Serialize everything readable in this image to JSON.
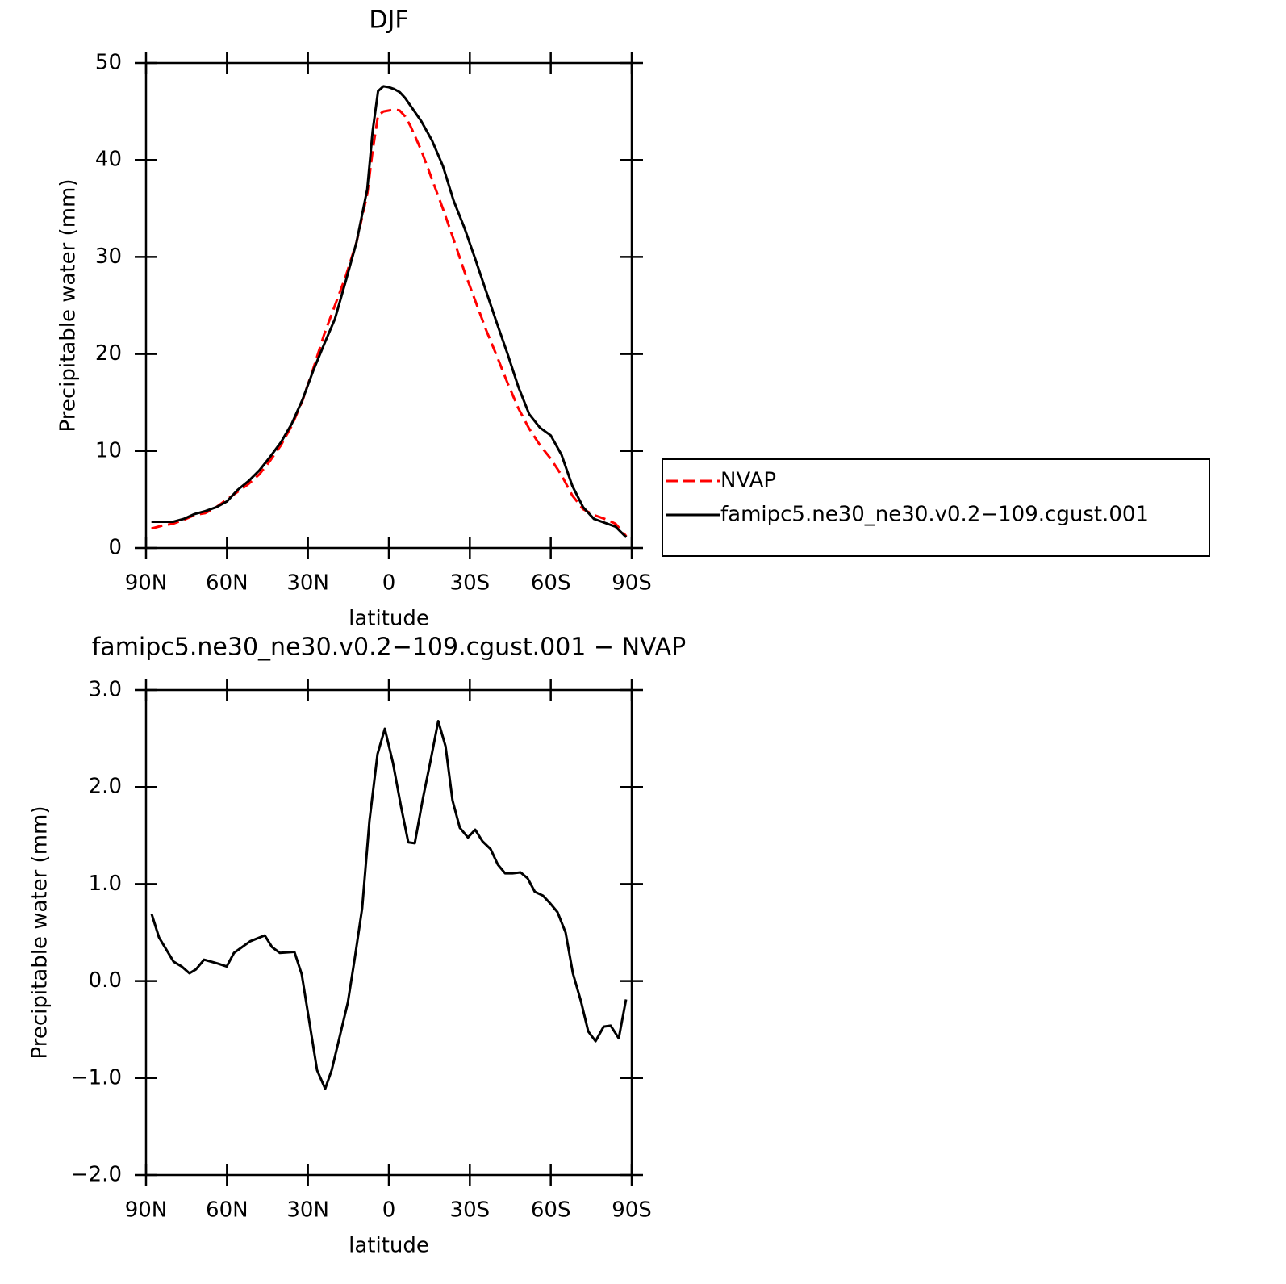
{
  "chart_data": [
    {
      "type": "line",
      "title": "DJF",
      "xlabel": "latitude",
      "ylabel": "Precipitable water (mm)",
      "x": [
        88,
        84,
        80,
        76,
        72,
        68,
        64,
        60,
        56,
        52,
        48,
        44,
        40,
        36,
        32,
        28,
        24,
        20,
        16,
        12,
        8,
        6,
        4,
        2,
        0,
        -2,
        -4,
        -6,
        -8,
        -12,
        -16,
        -20,
        -24,
        -28,
        -32,
        -36,
        -40,
        -44,
        -48,
        -52,
        -56,
        -60,
        -64,
        -68,
        -72,
        -76,
        -80,
        -84,
        -88
      ],
      "series": [
        {
          "name": "NVAP",
          "color": "#ff0000",
          "dashed": true,
          "values": [
            2.0,
            2.3,
            2.5,
            2.9,
            3.4,
            3.6,
            4.2,
            5.0,
            5.8,
            6.6,
            7.6,
            9.0,
            10.6,
            12.6,
            15.2,
            18.5,
            22.0,
            25.0,
            28.0,
            31.5,
            36.5,
            41,
            44.6,
            45.0,
            45.1,
            45.2,
            45.1,
            44.5,
            43.5,
            41.0,
            38.0,
            35.0,
            31.8,
            28.5,
            25.5,
            22.5,
            19.8,
            17.0,
            14.4,
            12.3,
            10.6,
            9.2,
            7.5,
            5.4,
            4.0,
            3.4,
            3.0,
            2.5,
            1.2
          ]
        },
        {
          "name": "famipc5.ne30_ne30.v0.2−109.cgust.001",
          "color": "#000000",
          "dashed": false,
          "values": [
            2.7,
            2.7,
            2.7,
            3.0,
            3.5,
            3.8,
            4.2,
            4.8,
            6.0,
            6.9,
            8.0,
            9.4,
            10.9,
            12.8,
            15.3,
            18.3,
            21.0,
            23.6,
            27.5,
            31.5,
            37,
            43,
            47.1,
            47.6,
            47.5,
            47.3,
            47.0,
            46.4,
            45.6,
            44.0,
            42.0,
            39.4,
            35.8,
            33.0,
            29.8,
            26.5,
            23.2,
            20.0,
            16.6,
            13.8,
            12.4,
            11.6,
            9.6,
            6.4,
            4.2,
            3.0,
            2.6,
            2.2,
            1.1
          ]
        }
      ],
      "xlim": [
        90,
        -90
      ],
      "xticks": [
        {
          "value": 90,
          "label": "90N"
        },
        {
          "value": 60,
          "label": "60N"
        },
        {
          "value": 30,
          "label": "30N"
        },
        0,
        {
          "value": -30,
          "label": "30S"
        },
        {
          "value": -60,
          "label": "60S"
        },
        {
          "value": -90,
          "label": "90S"
        }
      ],
      "ylim": [
        0,
        50
      ],
      "yticks": [
        0,
        10,
        20,
        30,
        40,
        50
      ],
      "legend": "right"
    },
    {
      "type": "line",
      "title": "famipc5.ne30_ne30.v0.2−109.cgust.001  −  NVAP",
      "xlabel": "latitude",
      "ylabel": "Precipitable water (mm)",
      "x": [
        87.9,
        85.2,
        79.8,
        76.8,
        73.9,
        71.5,
        68.5,
        63.4,
        60.1,
        57.4,
        51.4,
        46.0,
        43.3,
        40.4,
        35.0,
        32.3,
        29.3,
        26.6,
        23.6,
        21.2,
        18.2,
        15.2,
        12.5,
        9.9,
        7.2,
        4.2,
        1.5,
        -1.5,
        -4.5,
        -7.2,
        -9.6,
        -12.6,
        -15.3,
        -18.3,
        -21.0,
        -23.6,
        -26.3,
        -29.3,
        -32.0,
        -34.7,
        -37.7,
        -40.4,
        -43.1,
        -45.8,
        -48.8,
        -51.4,
        -54.1,
        -57.1,
        -59.8,
        -62.5,
        -65.5,
        -68.2,
        -71.2,
        -73.9,
        -76.6,
        -79.6,
        -82.2,
        -85.2,
        -87.9
      ],
      "series": [
        {
          "color": "#000000",
          "dashed": false,
          "values": [
            0.69,
            0.45,
            0.2,
            0.15,
            0.08,
            0.12,
            0.22,
            0.18,
            0.15,
            0.29,
            0.41,
            0.47,
            0.35,
            0.29,
            0.3,
            0.07,
            -0.45,
            -0.92,
            -1.11,
            -0.92,
            -0.57,
            -0.22,
            0.26,
            0.75,
            1.65,
            2.34,
            2.6,
            2.25,
            1.8,
            1.43,
            1.42,
            1.88,
            2.25,
            2.68,
            2.42,
            1.86,
            1.58,
            1.48,
            1.56,
            1.44,
            1.36,
            1.2,
            1.11,
            1.11,
            1.12,
            1.06,
            0.92,
            0.88,
            0.8,
            0.71,
            0.5,
            0.08,
            -0.21,
            -0.52,
            -0.62,
            -0.47,
            -0.46,
            -0.59,
            -0.19
          ]
        }
      ],
      "xlim": [
        90,
        -90
      ],
      "xticks": [
        {
          "value": 90,
          "label": "90N"
        },
        {
          "value": 60,
          "label": "60N"
        },
        {
          "value": 30,
          "label": "30N"
        },
        0,
        {
          "value": -30,
          "label": "30S"
        },
        {
          "value": -60,
          "label": "60S"
        },
        {
          "value": -90,
          "label": "90S"
        }
      ],
      "ylim": [
        -2,
        3
      ],
      "yticks": [
        {
          "value": -2,
          "label": "−2.0"
        },
        {
          "value": -1,
          "label": "−1.0"
        },
        {
          "value": 0,
          "label": "0.0"
        },
        {
          "value": 1,
          "label": "1.0"
        },
        {
          "value": 2,
          "label": "2.0"
        },
        {
          "value": 3,
          "label": "3.0"
        }
      ]
    }
  ]
}
